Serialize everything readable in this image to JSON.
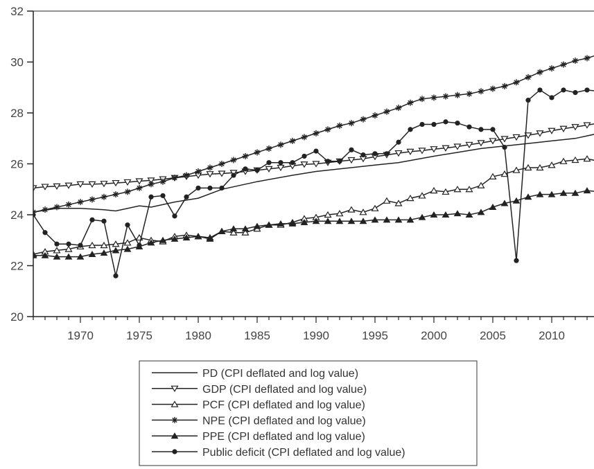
{
  "chart_data": {
    "type": "line",
    "x_ticks": [
      1970,
      1975,
      1980,
      1985,
      1990,
      1995,
      2000,
      2005,
      2010
    ],
    "y_ticks": [
      20,
      22,
      24,
      26,
      28,
      30,
      32
    ],
    "xlim": [
      1966,
      2014
    ],
    "ylim": [
      20,
      32
    ],
    "grid": false,
    "legend_position": "bottom-center",
    "series": [
      {
        "name": "PD (CPI deflated and log value)",
        "marker": "none",
        "points": [
          [
            1966,
            24.1
          ],
          [
            1968,
            24.25
          ],
          [
            1970,
            24.25
          ],
          [
            1972,
            24.2
          ],
          [
            1973,
            24.15
          ],
          [
            1975,
            24.35
          ],
          [
            1976,
            24.3
          ],
          [
            1978,
            24.5
          ],
          [
            1980,
            24.65
          ],
          [
            1982,
            25.0
          ],
          [
            1985,
            25.3
          ],
          [
            1988,
            25.55
          ],
          [
            1990,
            25.7
          ],
          [
            1995,
            25.95
          ],
          [
            1997,
            26.05
          ],
          [
            2000,
            26.3
          ],
          [
            2002,
            26.45
          ],
          [
            2004,
            26.6
          ],
          [
            2006,
            26.7
          ],
          [
            2008,
            26.8
          ],
          [
            2010,
            26.9
          ],
          [
            2012,
            27.0
          ],
          [
            2014,
            27.2
          ]
        ]
      },
      {
        "name": "GDP (CPI deflated and log value)",
        "marker": "triangle-down-open",
        "points": [
          [
            1966,
            25.05
          ],
          [
            1967,
            25.1
          ],
          [
            1968,
            25.12
          ],
          [
            1969,
            25.15
          ],
          [
            1970,
            25.2
          ],
          [
            1971,
            25.2
          ],
          [
            1972,
            25.22
          ],
          [
            1973,
            25.25
          ],
          [
            1974,
            25.28
          ],
          [
            1975,
            25.32
          ],
          [
            1976,
            25.35
          ],
          [
            1977,
            25.4
          ],
          [
            1978,
            25.45
          ],
          [
            1979,
            25.5
          ],
          [
            1980,
            25.55
          ],
          [
            1981,
            25.6
          ],
          [
            1982,
            25.62
          ],
          [
            1983,
            25.65
          ],
          [
            1984,
            25.7
          ],
          [
            1985,
            25.75
          ],
          [
            1986,
            25.8
          ],
          [
            1987,
            25.85
          ],
          [
            1988,
            25.92
          ],
          [
            1989,
            25.98
          ],
          [
            1990,
            26.0
          ],
          [
            1991,
            26.05
          ],
          [
            1992,
            26.1
          ],
          [
            1993,
            26.15
          ],
          [
            1994,
            26.2
          ],
          [
            1995,
            26.28
          ],
          [
            1996,
            26.35
          ],
          [
            1997,
            26.42
          ],
          [
            1998,
            26.48
          ],
          [
            1999,
            26.52
          ],
          [
            2000,
            26.58
          ],
          [
            2001,
            26.62
          ],
          [
            2002,
            26.68
          ],
          [
            2003,
            26.75
          ],
          [
            2004,
            26.82
          ],
          [
            2005,
            26.9
          ],
          [
            2006,
            26.98
          ],
          [
            2007,
            27.05
          ],
          [
            2008,
            27.12
          ],
          [
            2009,
            27.2
          ],
          [
            2010,
            27.3
          ],
          [
            2011,
            27.38
          ],
          [
            2012,
            27.45
          ],
          [
            2013,
            27.52
          ],
          [
            2014,
            27.6
          ]
        ]
      },
      {
        "name": "PCF (CPI deflated and log value)",
        "marker": "triangle-up-open",
        "points": [
          [
            1966,
            22.45
          ],
          [
            1967,
            22.55
          ],
          [
            1968,
            22.6
          ],
          [
            1969,
            22.65
          ],
          [
            1970,
            22.75
          ],
          [
            1971,
            22.8
          ],
          [
            1972,
            22.8
          ],
          [
            1973,
            22.85
          ],
          [
            1974,
            22.9
          ],
          [
            1975,
            23.1
          ],
          [
            1976,
            23.0
          ],
          [
            1977,
            22.95
          ],
          [
            1978,
            23.15
          ],
          [
            1979,
            23.2
          ],
          [
            1980,
            23.15
          ],
          [
            1981,
            23.1
          ],
          [
            1982,
            23.35
          ],
          [
            1983,
            23.3
          ],
          [
            1984,
            23.3
          ],
          [
            1985,
            23.45
          ],
          [
            1986,
            23.6
          ],
          [
            1987,
            23.6
          ],
          [
            1988,
            23.7
          ],
          [
            1989,
            23.85
          ],
          [
            1990,
            23.9
          ],
          [
            1991,
            24.0
          ],
          [
            1992,
            24.05
          ],
          [
            1993,
            24.2
          ],
          [
            1994,
            24.1
          ],
          [
            1995,
            24.25
          ],
          [
            1996,
            24.55
          ],
          [
            1997,
            24.45
          ],
          [
            1998,
            24.65
          ],
          [
            1999,
            24.75
          ],
          [
            2000,
            24.95
          ],
          [
            2001,
            24.9
          ],
          [
            2002,
            25.0
          ],
          [
            2003,
            25.0
          ],
          [
            2004,
            25.15
          ],
          [
            2005,
            25.5
          ],
          [
            2006,
            25.6
          ],
          [
            2007,
            25.75
          ],
          [
            2008,
            25.85
          ],
          [
            2009,
            25.85
          ],
          [
            2010,
            25.95
          ],
          [
            2011,
            26.1
          ],
          [
            2012,
            26.15
          ],
          [
            2013,
            26.2
          ],
          [
            2014,
            26.1
          ]
        ]
      },
      {
        "name": "NPE (CPI deflated and log value)",
        "marker": "asterisk",
        "points": [
          [
            1966,
            24.1
          ],
          [
            1967,
            24.2
          ],
          [
            1968,
            24.3
          ],
          [
            1969,
            24.4
          ],
          [
            1970,
            24.5
          ],
          [
            1971,
            24.6
          ],
          [
            1972,
            24.7
          ],
          [
            1973,
            24.8
          ],
          [
            1974,
            24.9
          ],
          [
            1975,
            25.05
          ],
          [
            1976,
            25.2
          ],
          [
            1977,
            25.3
          ],
          [
            1978,
            25.45
          ],
          [
            1979,
            25.55
          ],
          [
            1980,
            25.7
          ],
          [
            1981,
            25.85
          ],
          [
            1982,
            26.0
          ],
          [
            1983,
            26.15
          ],
          [
            1984,
            26.3
          ],
          [
            1985,
            26.45
          ],
          [
            1986,
            26.6
          ],
          [
            1987,
            26.75
          ],
          [
            1988,
            26.9
          ],
          [
            1989,
            27.05
          ],
          [
            1990,
            27.2
          ],
          [
            1991,
            27.35
          ],
          [
            1992,
            27.5
          ],
          [
            1993,
            27.6
          ],
          [
            1994,
            27.75
          ],
          [
            1995,
            27.9
          ],
          [
            1996,
            28.05
          ],
          [
            1997,
            28.2
          ],
          [
            1998,
            28.4
          ],
          [
            1999,
            28.55
          ],
          [
            2000,
            28.6
          ],
          [
            2001,
            28.65
          ],
          [
            2002,
            28.7
          ],
          [
            2003,
            28.75
          ],
          [
            2004,
            28.85
          ],
          [
            2005,
            28.95
          ],
          [
            2006,
            29.05
          ],
          [
            2007,
            29.2
          ],
          [
            2008,
            29.4
          ],
          [
            2009,
            29.6
          ],
          [
            2010,
            29.75
          ],
          [
            2011,
            29.9
          ],
          [
            2012,
            30.05
          ],
          [
            2013,
            30.15
          ],
          [
            2014,
            30.3
          ]
        ]
      },
      {
        "name": "PPE (CPI deflated and log value)",
        "marker": "triangle-up-filled",
        "points": [
          [
            1966,
            22.4
          ],
          [
            1967,
            22.4
          ],
          [
            1968,
            22.35
          ],
          [
            1969,
            22.35
          ],
          [
            1970,
            22.35
          ],
          [
            1971,
            22.45
          ],
          [
            1972,
            22.5
          ],
          [
            1973,
            22.6
          ],
          [
            1974,
            22.65
          ],
          [
            1975,
            22.75
          ],
          [
            1976,
            22.9
          ],
          [
            1977,
            23.0
          ],
          [
            1978,
            23.05
          ],
          [
            1979,
            23.1
          ],
          [
            1980,
            23.15
          ],
          [
            1981,
            23.05
          ],
          [
            1982,
            23.35
          ],
          [
            1983,
            23.45
          ],
          [
            1984,
            23.45
          ],
          [
            1985,
            23.55
          ],
          [
            1986,
            23.6
          ],
          [
            1987,
            23.65
          ],
          [
            1988,
            23.65
          ],
          [
            1989,
            23.7
          ],
          [
            1990,
            23.75
          ],
          [
            1991,
            23.75
          ],
          [
            1992,
            23.75
          ],
          [
            1993,
            23.75
          ],
          [
            1994,
            23.75
          ],
          [
            1995,
            23.8
          ],
          [
            1996,
            23.8
          ],
          [
            1997,
            23.8
          ],
          [
            1998,
            23.8
          ],
          [
            1999,
            23.9
          ],
          [
            2000,
            24.0
          ],
          [
            2001,
            24.0
          ],
          [
            2002,
            24.05
          ],
          [
            2003,
            24.0
          ],
          [
            2004,
            24.1
          ],
          [
            2005,
            24.3
          ],
          [
            2006,
            24.45
          ],
          [
            2007,
            24.55
          ],
          [
            2008,
            24.7
          ],
          [
            2009,
            24.8
          ],
          [
            2010,
            24.8
          ],
          [
            2011,
            24.85
          ],
          [
            2012,
            24.85
          ],
          [
            2013,
            24.95
          ],
          [
            2014,
            24.9
          ]
        ]
      },
      {
        "name": "Public deficit (CPI deflated and log value)",
        "marker": "circle-filled",
        "points": [
          [
            1966,
            24.0
          ],
          [
            1967,
            23.3
          ],
          [
            1968,
            22.85
          ],
          [
            1969,
            22.85
          ],
          [
            1970,
            22.8
          ],
          [
            1971,
            23.8
          ],
          [
            1972,
            23.75
          ],
          [
            1973,
            21.6
          ],
          [
            1974,
            23.6
          ],
          [
            1975,
            22.8
          ],
          [
            1976,
            24.7
          ],
          [
            1977,
            24.75
          ],
          [
            1978,
            23.95
          ],
          [
            1979,
            24.7
          ],
          [
            1980,
            25.05
          ],
          [
            1981,
            25.05
          ],
          [
            1982,
            25.05
          ],
          [
            1983,
            25.55
          ],
          [
            1984,
            25.8
          ],
          [
            1985,
            25.75
          ],
          [
            1986,
            26.05
          ],
          [
            1987,
            26.05
          ],
          [
            1988,
            26.05
          ],
          [
            1989,
            26.3
          ],
          [
            1990,
            26.5
          ],
          [
            1991,
            26.1
          ],
          [
            1992,
            26.1
          ],
          [
            1993,
            26.55
          ],
          [
            1994,
            26.35
          ],
          [
            1995,
            26.4
          ],
          [
            1996,
            26.4
          ],
          [
            1997,
            26.85
          ],
          [
            1998,
            27.35
          ],
          [
            1999,
            27.55
          ],
          [
            2000,
            27.55
          ],
          [
            2001,
            27.65
          ],
          [
            2002,
            27.6
          ],
          [
            2003,
            27.45
          ],
          [
            2004,
            27.35
          ],
          [
            2005,
            27.35
          ],
          [
            2006,
            26.65
          ],
          [
            2007,
            22.2
          ],
          [
            2008,
            28.5
          ],
          [
            2009,
            28.9
          ],
          [
            2010,
            28.6
          ],
          [
            2011,
            28.9
          ],
          [
            2012,
            28.8
          ],
          [
            2013,
            28.9
          ],
          [
            2014,
            28.85
          ]
        ]
      }
    ]
  }
}
